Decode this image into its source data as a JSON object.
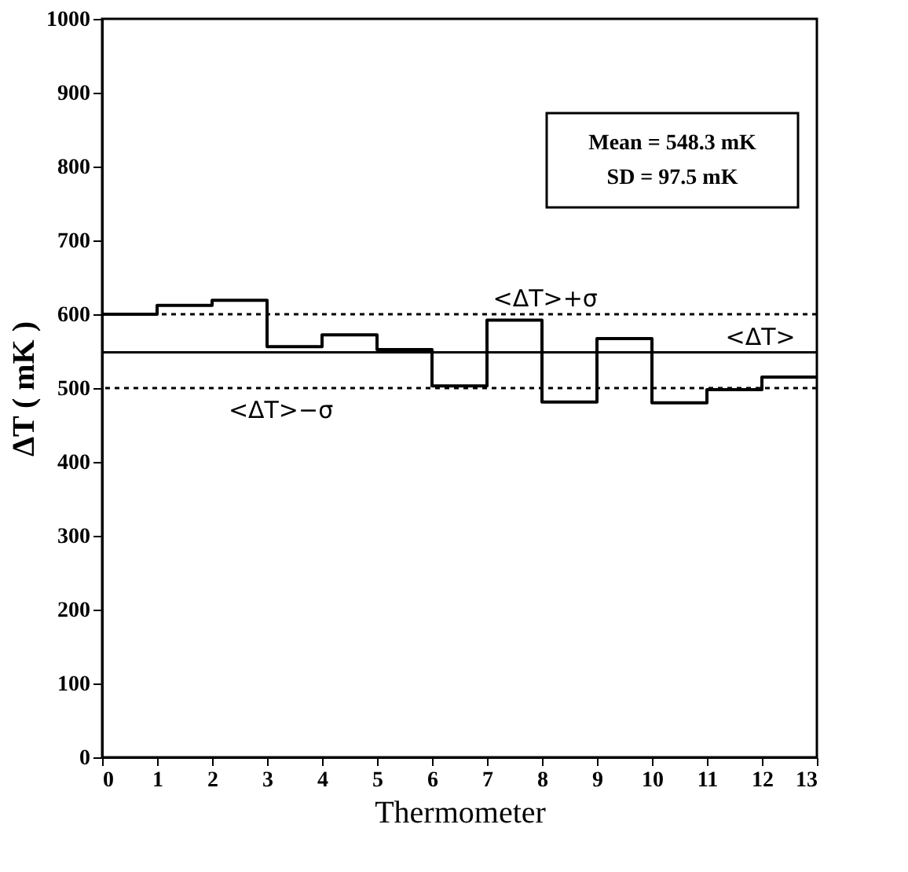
{
  "chart_data": {
    "type": "step",
    "xlabel": "Thermometer",
    "ylabel": "ΔT ( mK )",
    "x": [
      0,
      1,
      2,
      3,
      4,
      5,
      6,
      7,
      8,
      9,
      10,
      11,
      12,
      13
    ],
    "series": [
      {
        "color": "#000000",
        "values": [
          600,
          612,
          619,
          556,
          572,
          552,
          503,
          592,
          481,
          567,
          480,
          498,
          515,
          515
        ]
      }
    ],
    "xlim": [
      0,
      13
    ],
    "xticks": [
      0,
      1,
      2,
      3,
      4,
      5,
      6,
      7,
      8,
      9,
      10,
      11,
      12,
      13
    ],
    "ylim": [
      0,
      1000
    ],
    "yticks": [
      0,
      100,
      200,
      300,
      400,
      500,
      600,
      700,
      800,
      900,
      1000
    ],
    "ref_lines": [
      {
        "axis": "y",
        "value": 548.3,
        "label": "<ΔT>",
        "color": "#000000",
        "line_style": "solid"
      },
      {
        "axis": "y",
        "value": 600,
        "label": "<ΔT>+σ",
        "color": "#000000",
        "line_style": "dotted"
      },
      {
        "axis": "y",
        "value": 500,
        "label": "<ΔT>−σ",
        "color": "#000000",
        "line_style": "dotted"
      }
    ],
    "annotations": [
      "Mean = 548.3 mK",
      "SD = 97.5 mK"
    ],
    "grid": false,
    "marker": "none",
    "line_style": "solid"
  }
}
